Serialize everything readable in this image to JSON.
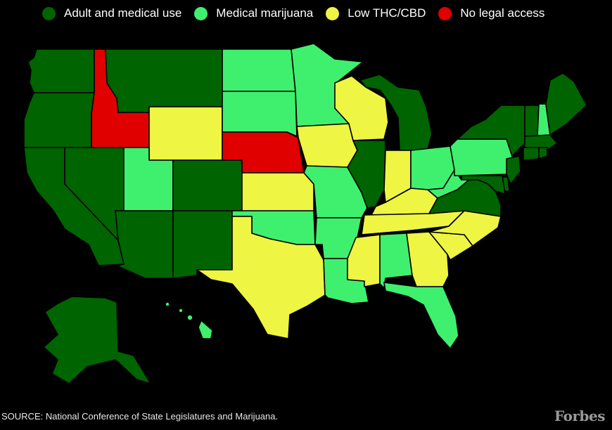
{
  "legend": [
    {
      "label": "Adult and medical use",
      "color": "#006400",
      "category": "adult"
    },
    {
      "label": "Medical marijuana",
      "color": "#3ff06e",
      "category": "medical"
    },
    {
      "label": "Low THC/CBD",
      "color": "#eef542",
      "category": "low"
    },
    {
      "label": "No legal access",
      "color": "#e00000",
      "category": "none"
    }
  ],
  "states": [
    {
      "code": "WA",
      "category": "adult"
    },
    {
      "code": "OR",
      "category": "adult"
    },
    {
      "code": "CA",
      "category": "adult"
    },
    {
      "code": "NV",
      "category": "adult"
    },
    {
      "code": "ID",
      "category": "none"
    },
    {
      "code": "MT",
      "category": "adult"
    },
    {
      "code": "WY",
      "category": "low"
    },
    {
      "code": "UT",
      "category": "medical"
    },
    {
      "code": "AZ",
      "category": "adult"
    },
    {
      "code": "CO",
      "category": "adult"
    },
    {
      "code": "NM",
      "category": "adult"
    },
    {
      "code": "ND",
      "category": "medical"
    },
    {
      "code": "SD",
      "category": "medical"
    },
    {
      "code": "NE",
      "category": "none"
    },
    {
      "code": "KS",
      "category": "low"
    },
    {
      "code": "OK",
      "category": "medical"
    },
    {
      "code": "TX",
      "category": "low"
    },
    {
      "code": "MN",
      "category": "medical"
    },
    {
      "code": "IA",
      "category": "low"
    },
    {
      "code": "MO",
      "category": "medical"
    },
    {
      "code": "AR",
      "category": "medical"
    },
    {
      "code": "LA",
      "category": "medical"
    },
    {
      "code": "WI",
      "category": "low"
    },
    {
      "code": "IL",
      "category": "adult"
    },
    {
      "code": "MI",
      "category": "adult"
    },
    {
      "code": "IN",
      "category": "low"
    },
    {
      "code": "OH",
      "category": "medical"
    },
    {
      "code": "KY",
      "category": "low"
    },
    {
      "code": "TN",
      "category": "low"
    },
    {
      "code": "MS",
      "category": "low"
    },
    {
      "code": "AL",
      "category": "medical"
    },
    {
      "code": "GA",
      "category": "low"
    },
    {
      "code": "FL",
      "category": "medical"
    },
    {
      "code": "SC",
      "category": "low"
    },
    {
      "code": "NC",
      "category": "low"
    },
    {
      "code": "VA",
      "category": "adult"
    },
    {
      "code": "WV",
      "category": "medical"
    },
    {
      "code": "PA",
      "category": "medical"
    },
    {
      "code": "NY",
      "category": "adult"
    },
    {
      "code": "VT",
      "category": "adult"
    },
    {
      "code": "NH",
      "category": "medical"
    },
    {
      "code": "ME",
      "category": "adult"
    },
    {
      "code": "MA",
      "category": "adult"
    },
    {
      "code": "CT",
      "category": "adult"
    },
    {
      "code": "RI",
      "category": "adult"
    },
    {
      "code": "NJ",
      "category": "adult"
    },
    {
      "code": "DE",
      "category": "adult"
    },
    {
      "code": "MD",
      "category": "adult"
    },
    {
      "code": "AK",
      "category": "adult"
    },
    {
      "code": "HI",
      "category": "medical"
    }
  ],
  "source": "SOURCE: National Conference of State Legislatures and Marijuana.",
  "brand": "Forbes"
}
